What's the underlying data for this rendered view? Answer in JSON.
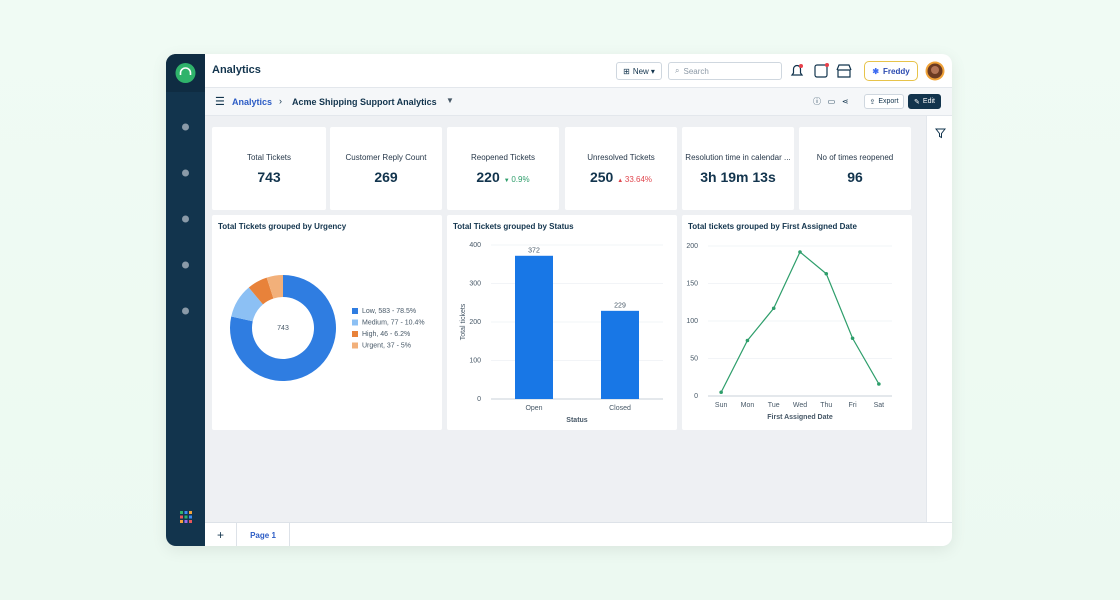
{
  "header": {
    "title": "Analytics",
    "new_button": "New",
    "search_placeholder": "Search",
    "assistant": "Freddy"
  },
  "breadcrumb": {
    "root": "Analytics",
    "current": "Acme Shipping Support Analytics",
    "export": "Export",
    "edit": "Edit"
  },
  "kpis": [
    {
      "label": "Total Tickets",
      "value": "743"
    },
    {
      "label": "Customer Reply Count",
      "value": "269"
    },
    {
      "label": "Reopened Tickets",
      "value": "220",
      "change": "0.9%",
      "direction": "down"
    },
    {
      "label": "Unresolved Tickets",
      "value": "250",
      "change": "33.64%",
      "direction": "up"
    },
    {
      "label": "Resolution time in calendar ...",
      "value": "3h 19m 13s"
    },
    {
      "label": "No of times reopened",
      "value": "96"
    }
  ],
  "chart_data": [
    {
      "type": "donut",
      "title": "Total Tickets grouped by Urgency",
      "center_label": "743",
      "categories": [
        "Low",
        "Medium",
        "High",
        "Urgent"
      ],
      "values": [
        583,
        77,
        46,
        37
      ],
      "legend_labels": [
        "Low, 583 - 78.5%",
        "Medium, 77 -  10.4%",
        "High, 46 -  6.2%",
        "Urgent, 37 -  5%"
      ],
      "colors": [
        "#2f7de1",
        "#8cc0f4",
        "#e8823a",
        "#f2b07a"
      ]
    },
    {
      "type": "bar",
      "title": "Total Tickets grouped by Status",
      "xlabel": "Status",
      "ylabel": "Total tickets",
      "categories": [
        "Open",
        "Closed"
      ],
      "values": [
        372,
        229
      ],
      "color": "#1877e6",
      "ylim": [
        0,
        400
      ],
      "yticks": [
        0,
        100,
        200,
        300,
        400
      ],
      "grid": true,
      "show_value_labels": true
    },
    {
      "type": "line",
      "title": "Total tickets grouped by First Assigned Date",
      "xlabel": "First Assigned Date",
      "ylabel": "Total tickets",
      "categories": [
        "Sun",
        "Mon",
        "Tue",
        "Wed",
        "Thu",
        "Fri",
        "Sat"
      ],
      "values": [
        5,
        74,
        117,
        192,
        163,
        77,
        16
      ],
      "color": "#2e9e6b",
      "ylim": [
        0,
        200
      ],
      "yticks": [
        0,
        50,
        100,
        150,
        200
      ],
      "grid": true
    }
  ],
  "footer": {
    "tab": "Page 1"
  }
}
